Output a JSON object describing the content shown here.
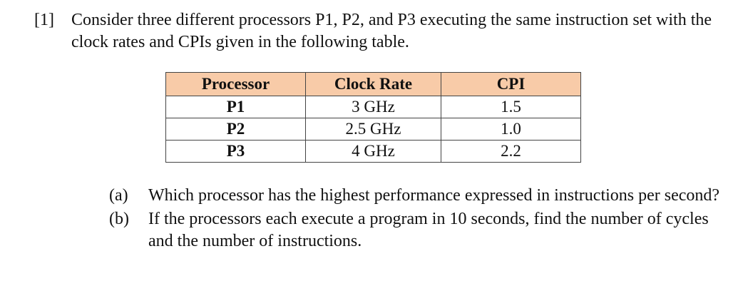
{
  "problem": {
    "number": "[1]",
    "text": "Consider three different processors P1, P2, and P3 executing the same instruction set with the clock rates and CPIs given in the following table."
  },
  "table": {
    "headers": [
      "Processor",
      "Clock Rate",
      "CPI"
    ],
    "header_bg": "#f8cba8",
    "rows": [
      {
        "processor": "P1",
        "clock_rate": "3 GHz",
        "cpi": "1.5"
      },
      {
        "processor": "P2",
        "clock_rate": "2.5 GHz",
        "cpi": "1.0"
      },
      {
        "processor": "P3",
        "clock_rate": "4 GHz",
        "cpi": "2.2"
      }
    ]
  },
  "parts": [
    {
      "label": "(a)",
      "text": "Which processor has the highest performance expressed in instructions per second?"
    },
    {
      "label": "(b)",
      "text": "If the processors each execute a program in 10 seconds, find the number of cycles and the number of instructions."
    }
  ]
}
